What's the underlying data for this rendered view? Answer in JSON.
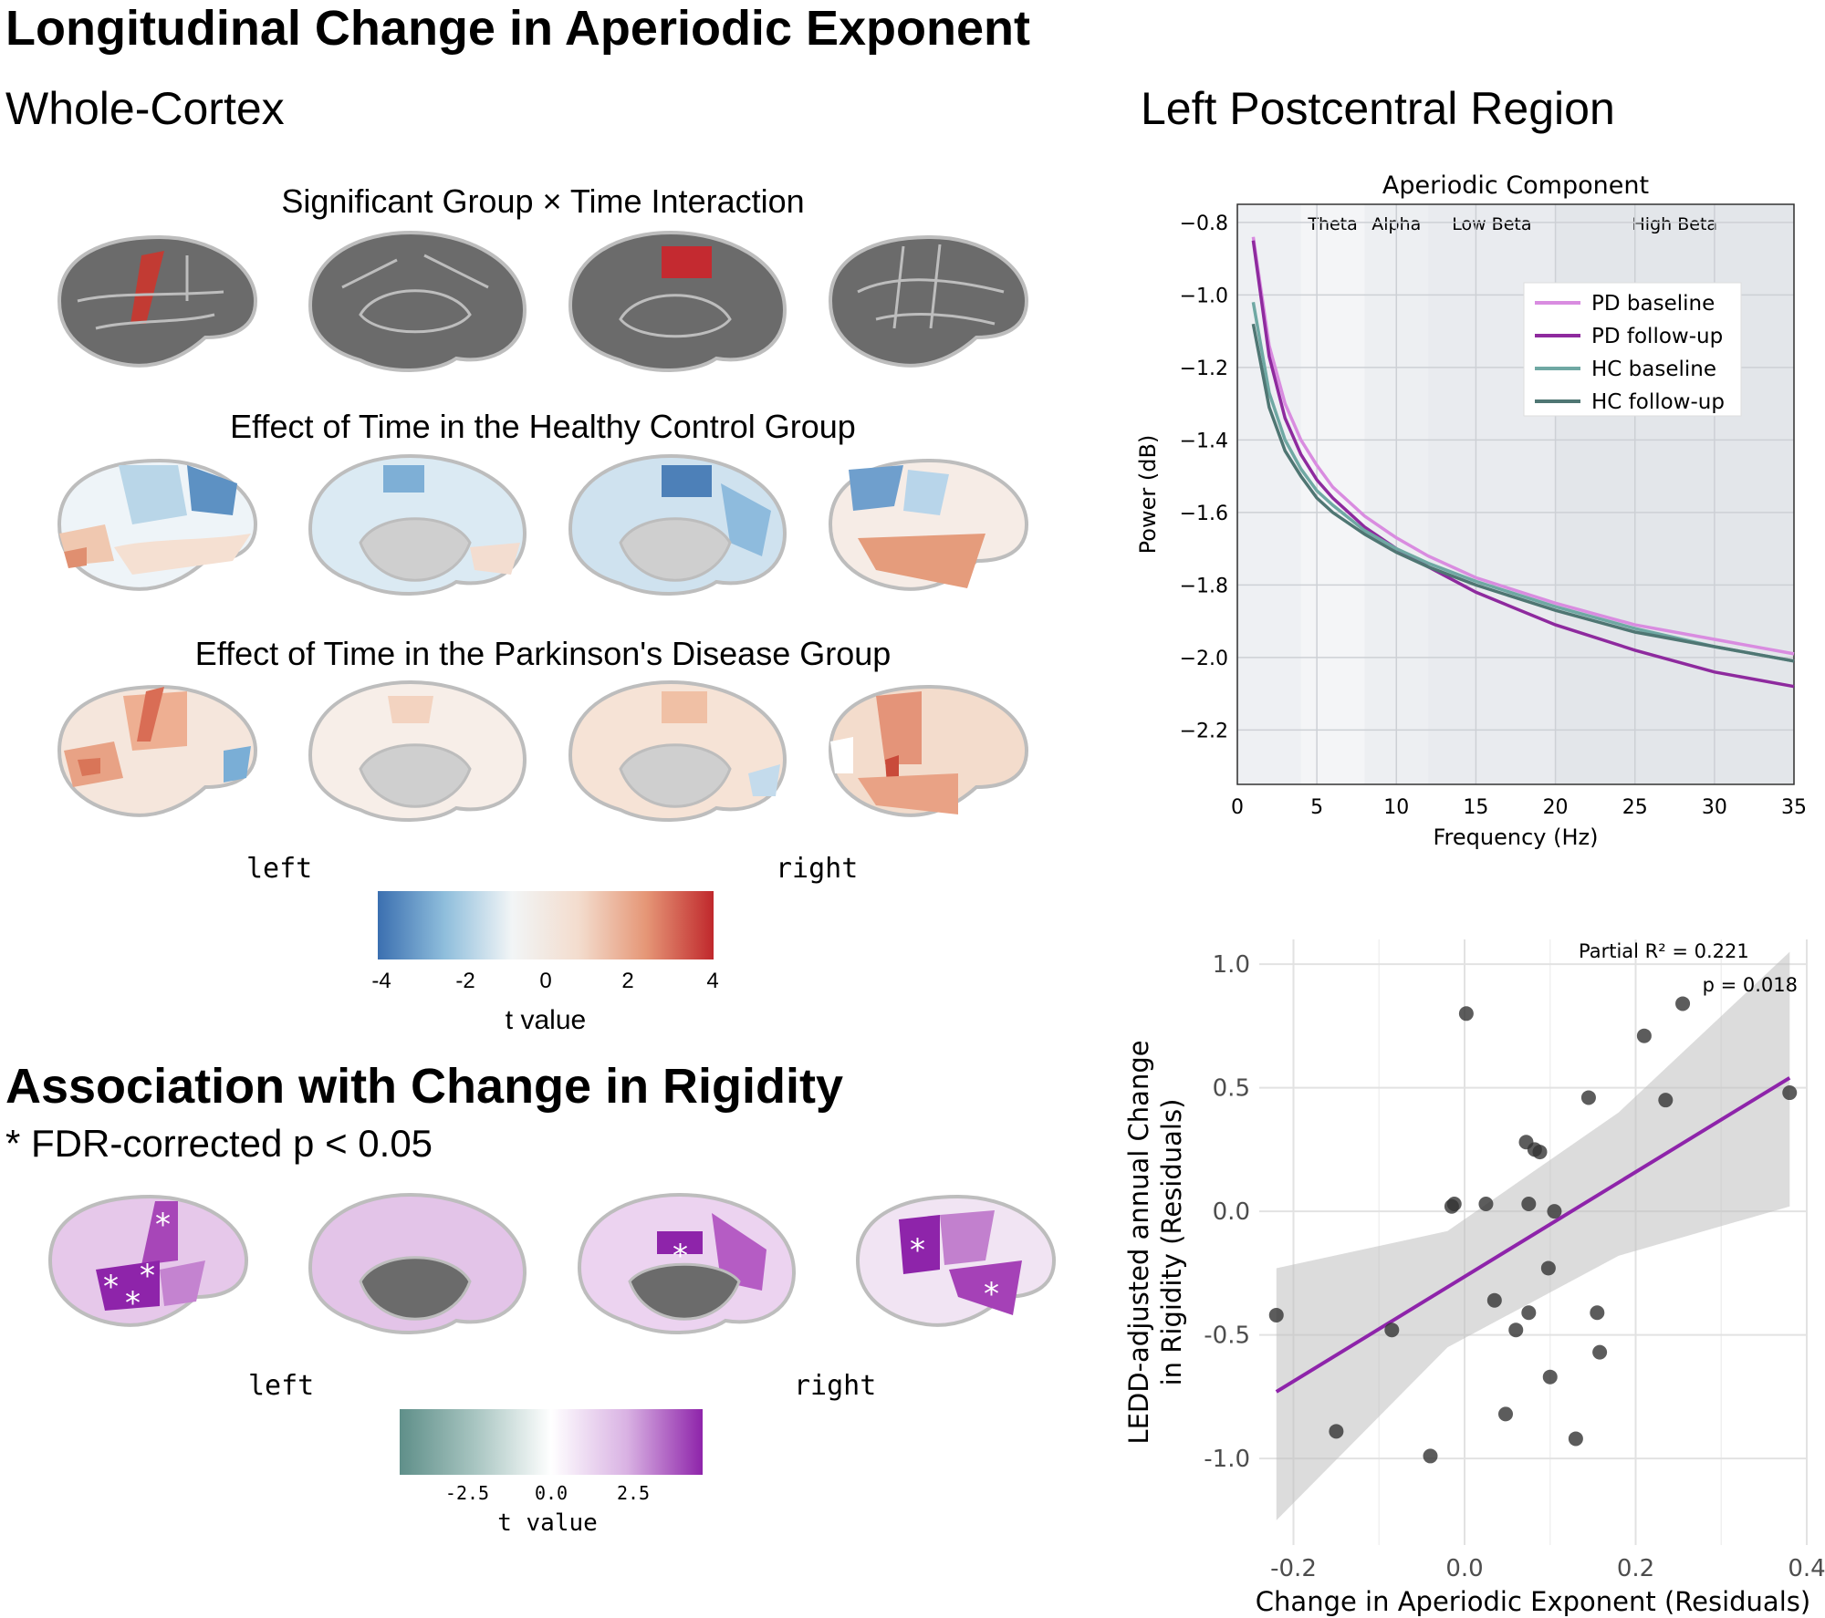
{
  "title": "Longitudinal Change in Aperiodic Exponent",
  "whole_cortex": {
    "heading": "Whole-Cortex",
    "panel_titles": [
      "Significant Group × Time Interaction",
      "Effect of Time in the Healthy Control Group",
      "Effect of Time in the Parkinson's Disease Group"
    ],
    "hemi_left": "left",
    "hemi_right": "right",
    "colorbar": {
      "ticks": [
        "-4",
        "-2",
        "0",
        "2",
        "4"
      ],
      "label": "t value",
      "colors": [
        "#3b6fb0",
        "#f7f7f7",
        "#c0282c"
      ]
    }
  },
  "rigidity": {
    "heading": "Association with Change in Rigidity",
    "note": "* FDR-corrected p < 0.05",
    "hemi_left": "left",
    "hemi_right": "right",
    "colorbar": {
      "ticks": [
        "-2.5",
        "0.0",
        "2.5"
      ],
      "label": "t value",
      "colors": [
        "#5f8f89",
        "#ffffff",
        "#8e24aa"
      ]
    }
  },
  "postcentral": {
    "heading": "Left Postcentral Region"
  },
  "chart_data": [
    {
      "type": "line",
      "title": "Aperiodic Component",
      "xlabel": "Frequency (Hz)",
      "ylabel": "Power (dB)",
      "xlim": [
        0,
        35
      ],
      "ylim": [
        -2.35,
        -0.75
      ],
      "xticks": [
        "0",
        "5",
        "10",
        "15",
        "20",
        "25",
        "30",
        "35"
      ],
      "yticks": [
        "−0.8",
        "−1.0",
        "−1.2",
        "−1.4",
        "−1.6",
        "−1.8",
        "−2.0",
        "−2.2"
      ],
      "bands": [
        {
          "name": "Theta",
          "range": [
            4,
            8
          ]
        },
        {
          "name": "Alpha",
          "range": [
            8,
            12
          ]
        },
        {
          "name": "Low Beta",
          "range": [
            12,
            20
          ]
        },
        {
          "name": "High Beta",
          "range": [
            20,
            35
          ]
        }
      ],
      "x": [
        1,
        2,
        3,
        4,
        5,
        6,
        8,
        10,
        12,
        15,
        20,
        25,
        30,
        35
      ],
      "series": [
        {
          "name": "PD baseline",
          "color": "#d98ce0",
          "values": [
            -0.84,
            -1.14,
            -1.3,
            -1.4,
            -1.47,
            -1.53,
            -1.61,
            -1.67,
            -1.72,
            -1.78,
            -1.85,
            -1.91,
            -1.95,
            -1.99
          ]
        },
        {
          "name": "PD follow-up",
          "color": "#8e2a9e",
          "values": [
            -0.85,
            -1.17,
            -1.34,
            -1.44,
            -1.51,
            -1.56,
            -1.64,
            -1.7,
            -1.75,
            -1.82,
            -1.91,
            -1.98,
            -2.04,
            -2.08
          ]
        },
        {
          "name": "HC baseline",
          "color": "#6fa8a3",
          "values": [
            -1.02,
            -1.27,
            -1.4,
            -1.48,
            -1.54,
            -1.58,
            -1.65,
            -1.7,
            -1.74,
            -1.79,
            -1.86,
            -1.92,
            -1.97,
            -2.01
          ]
        },
        {
          "name": "HC follow-up",
          "color": "#4f7673",
          "values": [
            -1.08,
            -1.31,
            -1.43,
            -1.5,
            -1.56,
            -1.6,
            -1.66,
            -1.71,
            -1.75,
            -1.8,
            -1.87,
            -1.93,
            -1.97,
            -2.01
          ]
        }
      ]
    },
    {
      "type": "scatter",
      "xlabel": "Change in Aperiodic Exponent (Residuals)",
      "ylabel_lines": [
        "LEDD-adjusted annual Change",
        "in Rigidity (Residuals)"
      ],
      "xlim": [
        -0.24,
        0.4
      ],
      "ylim": [
        -1.35,
        1.1
      ],
      "xticks": [
        "-0.2",
        "0.0",
        "0.2",
        "0.4"
      ],
      "yticks": [
        "1.0",
        "0.5",
        "0.0",
        "-0.5",
        "-1.0"
      ],
      "annotation": [
        "Partial R² = 0.221",
        "p = 0.018"
      ],
      "fit": {
        "x": [
          -0.22,
          0.38
        ],
        "y": [
          -0.73,
          0.54
        ],
        "color": "#8e24aa",
        "ci_lower": [
          -1.25,
          -0.55,
          -0.18,
          0.02
        ],
        "ci_upper": [
          -0.23,
          -0.08,
          0.4,
          1.05
        ]
      },
      "points": [
        {
          "x": -0.22,
          "y": -0.42
        },
        {
          "x": -0.15,
          "y": -0.89
        },
        {
          "x": -0.085,
          "y": -0.48
        },
        {
          "x": -0.04,
          "y": -0.99
        },
        {
          "x": -0.015,
          "y": 0.02
        },
        {
          "x": -0.012,
          "y": 0.03
        },
        {
          "x": 0.002,
          "y": 0.8
        },
        {
          "x": 0.025,
          "y": 0.03
        },
        {
          "x": 0.035,
          "y": -0.36
        },
        {
          "x": 0.048,
          "y": -0.82
        },
        {
          "x": 0.06,
          "y": -0.48
        },
        {
          "x": 0.072,
          "y": 0.28
        },
        {
          "x": 0.075,
          "y": -0.41
        },
        {
          "x": 0.075,
          "y": 0.03
        },
        {
          "x": 0.082,
          "y": 0.25
        },
        {
          "x": 0.088,
          "y": 0.24
        },
        {
          "x": 0.098,
          "y": -0.23
        },
        {
          "x": 0.1,
          "y": -0.67
        },
        {
          "x": 0.105,
          "y": 0.0
        },
        {
          "x": 0.13,
          "y": -0.92
        },
        {
          "x": 0.145,
          "y": 0.46
        },
        {
          "x": 0.155,
          "y": -0.41
        },
        {
          "x": 0.158,
          "y": -0.57
        },
        {
          "x": 0.21,
          "y": 0.71
        },
        {
          "x": 0.235,
          "y": 0.45
        },
        {
          "x": 0.255,
          "y": 0.84
        },
        {
          "x": 0.38,
          "y": 0.48
        }
      ]
    }
  ]
}
